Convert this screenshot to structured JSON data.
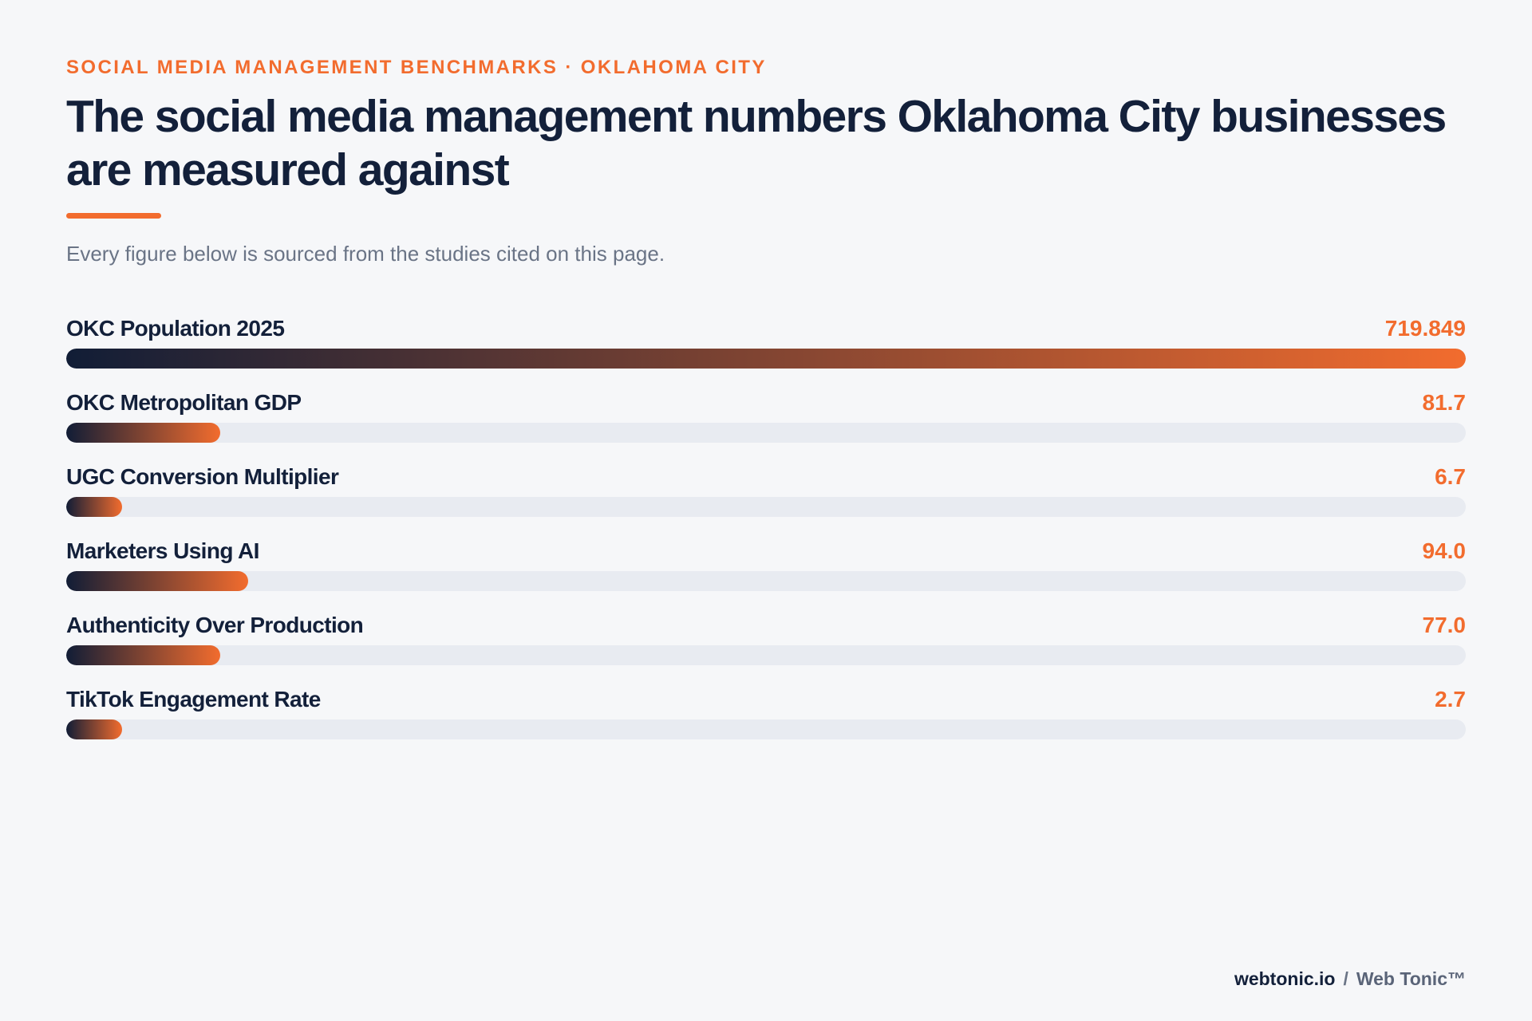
{
  "header": {
    "eyebrow": "SOCIAL MEDIA MANAGEMENT BENCHMARKS · OKLAHOMA CITY",
    "title": "The social media management numbers Oklahoma City businesses are measured against",
    "subtitle": "Every figure below is sourced from the studies cited on this page."
  },
  "colors": {
    "accent": "#f26c2e",
    "navy": "#13203a",
    "track": "#e8ebf1",
    "background": "#f6f7f9"
  },
  "chart_data": {
    "type": "bar",
    "orientation": "horizontal",
    "categories": [
      "OKC Population 2025",
      "OKC Metropolitan GDP",
      "UGC Conversion Multiplier",
      "Marketers Using AI",
      "Authenticity Over Production",
      "TikTok Engagement Rate"
    ],
    "value_labels": [
      "719.849",
      "81.7",
      "6.7",
      "94.0",
      "77.0",
      "2.7"
    ],
    "fill_fractions": [
      1.0,
      0.11,
      0.04,
      0.13,
      0.11,
      0.04
    ]
  },
  "footer": {
    "domain": "webtonic.io",
    "separator": "/",
    "brand": "Web Tonic™"
  }
}
